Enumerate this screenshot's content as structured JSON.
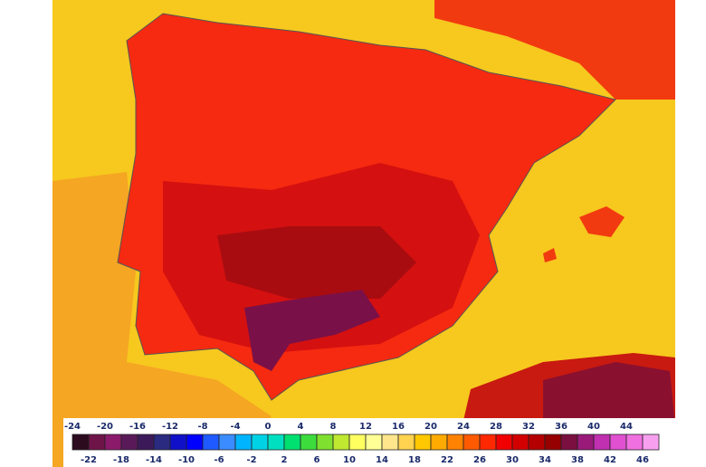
{
  "legend": {
    "top_labels": [
      -24,
      -20,
      -16,
      -12,
      -8,
      -4,
      0,
      4,
      8,
      12,
      16,
      20,
      24,
      28,
      32,
      36,
      40,
      44
    ],
    "bottom_labels": [
      -22,
      -18,
      -14,
      -10,
      -6,
      -2,
      2,
      6,
      10,
      14,
      18,
      22,
      26,
      30,
      34,
      38,
      42,
      46
    ],
    "colors": [
      "#2d0b1e",
      "#6e1448",
      "#8b1a6b",
      "#5a1a5a",
      "#3c1a5a",
      "#2a2a80",
      "#1010c8",
      "#0000ff",
      "#1e5aff",
      "#3a8cff",
      "#00b4ff",
      "#00d2e6",
      "#00e0c0",
      "#00e070",
      "#3cdc3c",
      "#80e030",
      "#c0e830",
      "#ffff60",
      "#ffff96",
      "#ffe68c",
      "#ffd250",
      "#ffc800",
      "#ffaa00",
      "#ff8200",
      "#ff5a00",
      "#ff2800",
      "#f00000",
      "#d20000",
      "#b40000",
      "#960000",
      "#7a1040",
      "#9a1a7a",
      "#c030b0",
      "#e050d0",
      "#f070e0",
      "#f8a0f0"
    ]
  }
}
